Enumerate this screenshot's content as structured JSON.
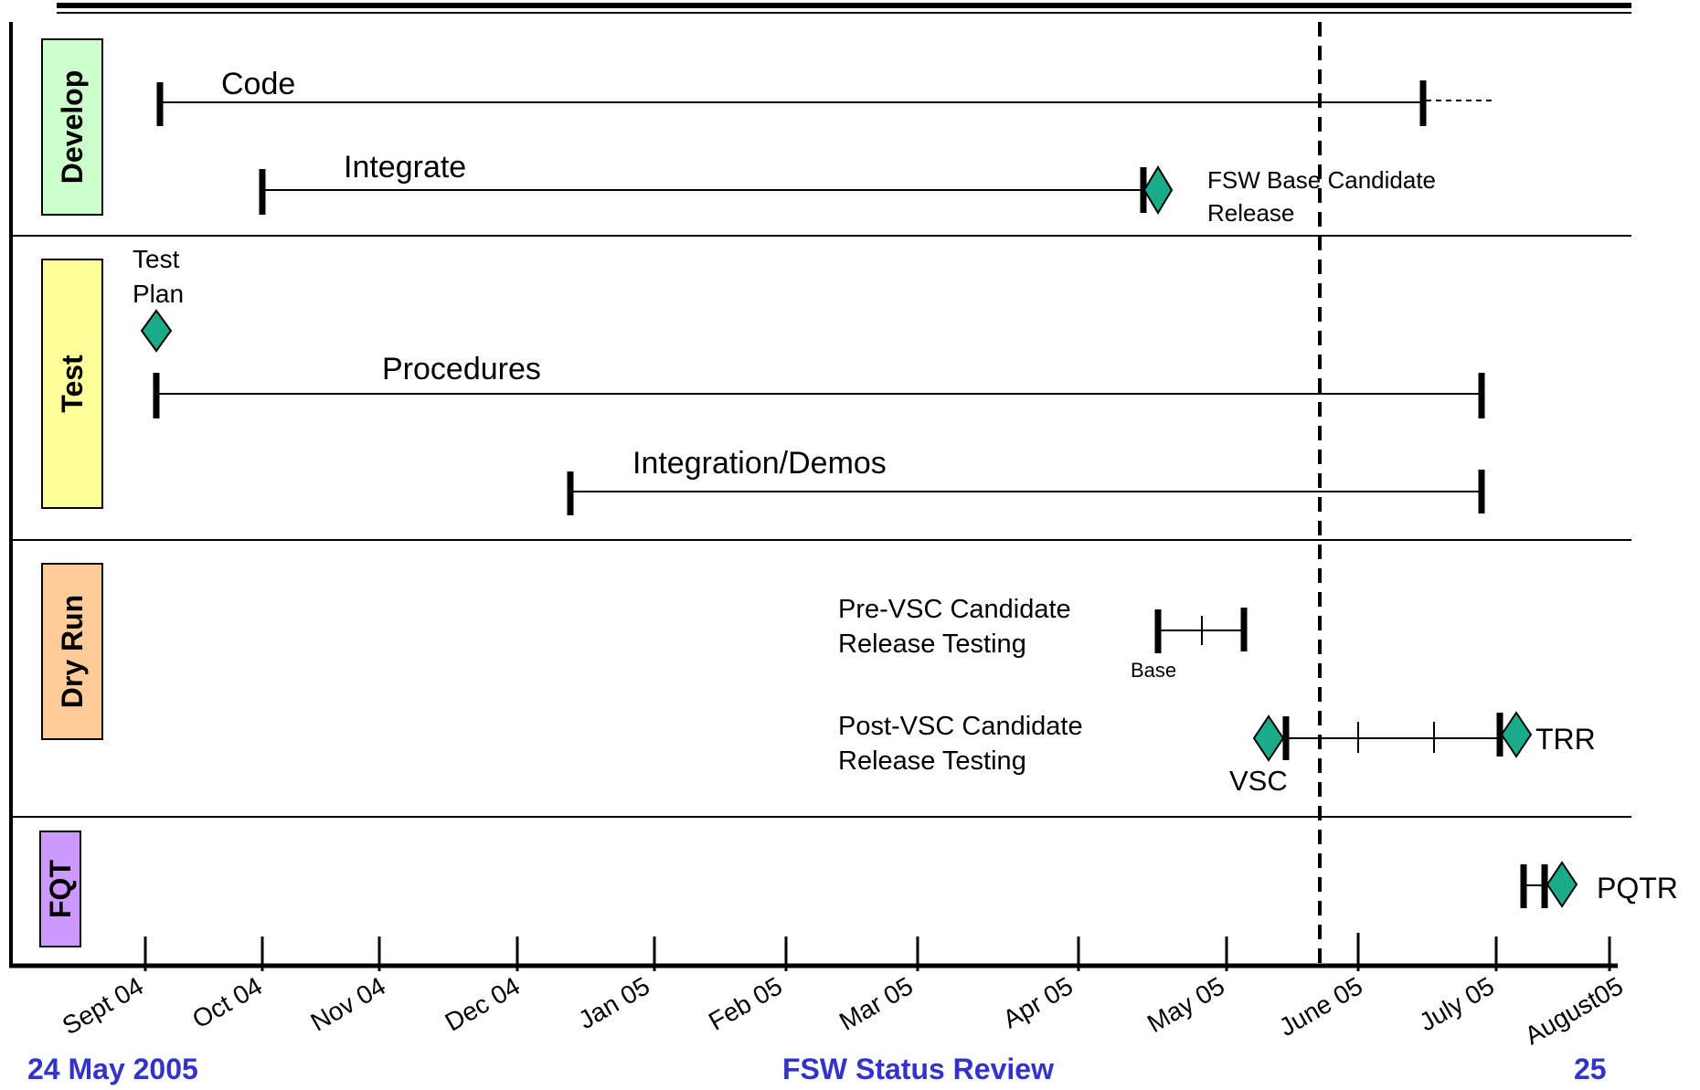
{
  "lanes": [
    {
      "id": "develop",
      "label": "Develop",
      "color": "#ccffcc"
    },
    {
      "id": "test",
      "label": "Test",
      "color": "#ffff99"
    },
    {
      "id": "dryrun",
      "label": "Dry Run",
      "color": "#ffcc99"
    },
    {
      "id": "fqt",
      "label": "FQT",
      "color": "#cc99ff"
    }
  ],
  "timeline": {
    "months": [
      "Sept 04",
      "Oct 04",
      "Nov 04",
      "Dec 04",
      "Jan 05",
      "Feb 05",
      "Mar 05",
      "Apr 05",
      "May 05",
      "June 05",
      "July 05",
      "August05"
    ],
    "status_date": "24 May 2005"
  },
  "activities": {
    "code": "Code",
    "integrate": "Integrate",
    "fsw_base_line1": "FSW Base Candidate",
    "fsw_base_line2": "Release",
    "test_plan_line1": "Test",
    "test_plan_line2": "Plan",
    "procedures": "Procedures",
    "integration_demos": "Integration/Demos",
    "pre_vsc_line1": "Pre-VSC Candidate",
    "pre_vsc_line2": "Release Testing",
    "base": "Base",
    "post_vsc_line1": "Post-VSC Candidate",
    "post_vsc_line2": "Release Testing",
    "vsc": "VSC",
    "trr": "TRR",
    "pqtr": "PQTR"
  },
  "colors": {
    "milestone": "#1aab8a",
    "footer": "#3333cc"
  },
  "footer": {
    "date": "24 May 2005",
    "title": "FSW Status Review",
    "page": "25"
  }
}
